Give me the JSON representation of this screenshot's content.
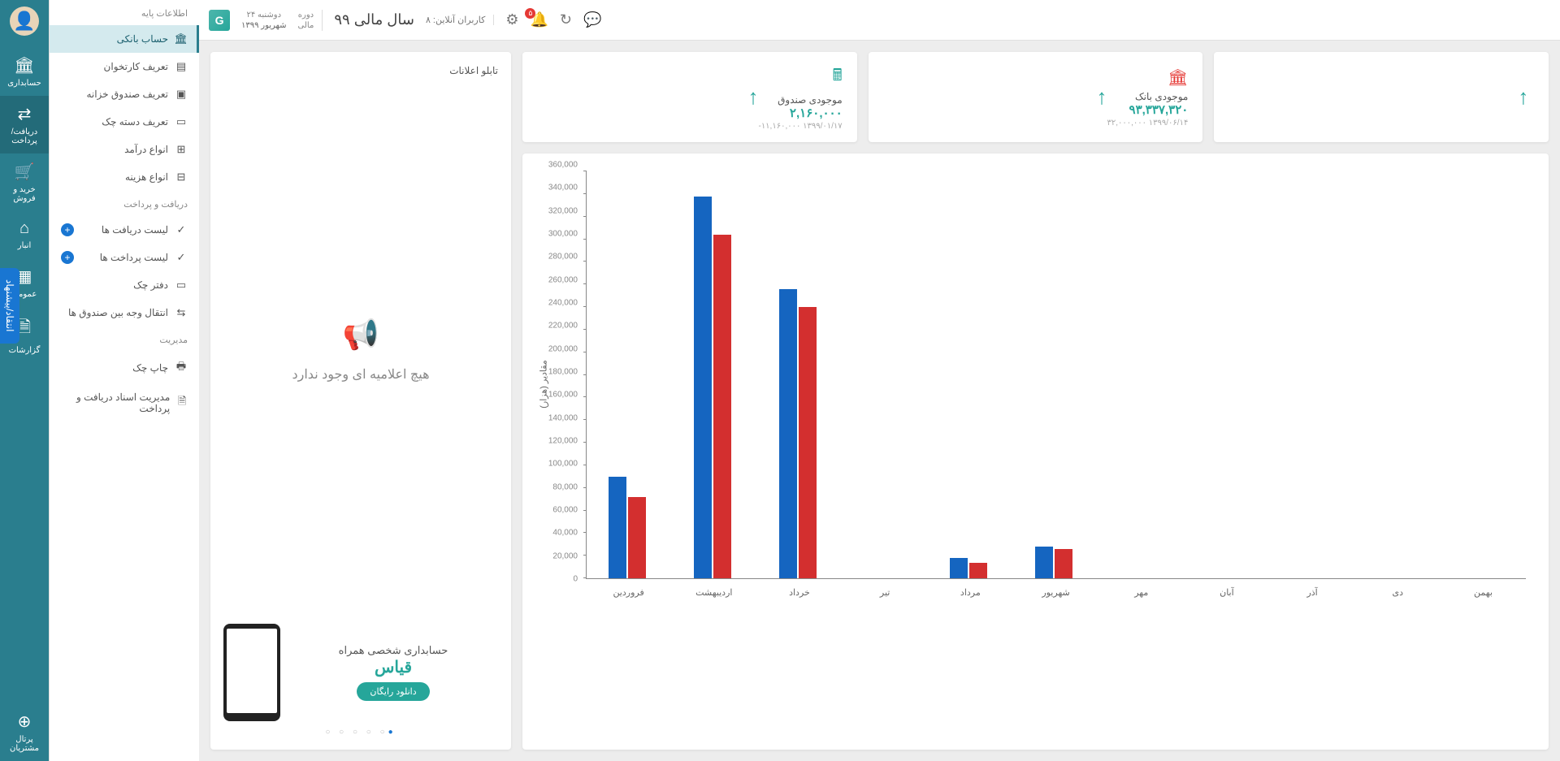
{
  "topbar": {
    "date_weekday": "دوشنبه ۲۴",
    "date_sub": "شهریور ۱۳۹۹",
    "fiscal_year": "سال مالی ۹۹",
    "period_label": "دوره",
    "period_sub": "مالی",
    "online_users": "کاربران آنلاین: ۸",
    "bell_badge": "۵",
    "logo_text": "G"
  },
  "nav_rail": [
    {
      "icon": "🏛",
      "label": "حسابداری",
      "active": false
    },
    {
      "icon": "⇄",
      "label": "دریافت/پرداخت",
      "active": true
    },
    {
      "icon": "🛒",
      "label": "خرید و فروش",
      "active": false
    },
    {
      "icon": "⌂",
      "label": "انبار",
      "active": false
    },
    {
      "icon": "▦",
      "label": "عمومی",
      "active": false
    },
    {
      "icon": "🗎",
      "label": "گزارشات",
      "active": false
    }
  ],
  "nav_rail_bottom": {
    "icon": "⊕",
    "label": "پرتال مشتریان"
  },
  "submenu": {
    "groups": [
      {
        "title": "اطلاعات پایه",
        "items": [
          {
            "icon": "🏛",
            "label": "حساب بانکی",
            "active": true
          },
          {
            "icon": "▤",
            "label": "تعریف کارتخوان"
          },
          {
            "icon": "▣",
            "label": "تعریف صندوق خزانه"
          },
          {
            "icon": "▭",
            "label": "تعریف دسته چک"
          },
          {
            "icon": "⊞",
            "label": "انواع درآمد"
          },
          {
            "icon": "⊟",
            "label": "انواع هزینه"
          }
        ]
      },
      {
        "title": "دریافت و پرداخت",
        "items": [
          {
            "icon": "✓",
            "label": "لیست دریافت ها",
            "plus": true
          },
          {
            "icon": "✓",
            "label": "لیست پرداخت ها",
            "plus": true
          },
          {
            "icon": "▭",
            "label": "دفتر چک"
          },
          {
            "icon": "⇆",
            "label": "انتقال وجه بین صندوق ها"
          }
        ]
      },
      {
        "title": "مدیریت",
        "items": [
          {
            "icon": "🖶",
            "label": "چاپ چک"
          },
          {
            "icon": "🗎",
            "label": "مدیریت اسناد دریافت و پرداخت"
          }
        ]
      }
    ]
  },
  "stats": {
    "bank": {
      "icon": "🏛",
      "label": "موجودی بانک",
      "value": "۹۳,۳۳۷,۳۲۰",
      "sub": "۱۳۹۹/۰۶/۱۴   ۳۲,۰۰۰,۰۰۰"
    },
    "cash": {
      "icon": "🖩",
      "label": "موجودی صندوق",
      "value": "۲,۱۶۰,۰۰۰",
      "sub": "۱۳۹۹/۰۱/۱۷   ۱۱,۱۶۰,۰۰۰-"
    },
    "arrow": "↑"
  },
  "notice": {
    "title": "تابلو اعلانات",
    "empty_text": "هیچ اعلامیه ای وجود ندارد",
    "promo_line1": "حسابداری شخصی همراه",
    "promo_line2": "قیاس",
    "promo_btn": "دانلود رایگان"
  },
  "feedback_label": "انتقاد/پیشنهاد",
  "chart": {
    "type": "bar",
    "y_label": "مقادیر (هزار)",
    "y_max": 360000,
    "y_step": 20000,
    "categories": [
      "فروردین",
      "اردیبهشت",
      "خرداد",
      "تیر",
      "مرداد",
      "شهریور",
      "مهر",
      "آبان",
      "آذر",
      "دی",
      "بهمن"
    ],
    "series": [
      {
        "name": "s0",
        "color": "#1565c0",
        "values": [
          90000,
          338000,
          256000,
          0,
          18000,
          28000,
          0,
          0,
          0,
          0,
          0
        ]
      },
      {
        "name": "s1",
        "color": "#d32f2f",
        "values": [
          72000,
          304000,
          240000,
          0,
          14000,
          26000,
          0,
          0,
          0,
          0,
          0
        ]
      }
    ],
    "axis_color": "#888",
    "tick_font_size": 10,
    "label_color": "#666",
    "background": "#ffffff"
  }
}
